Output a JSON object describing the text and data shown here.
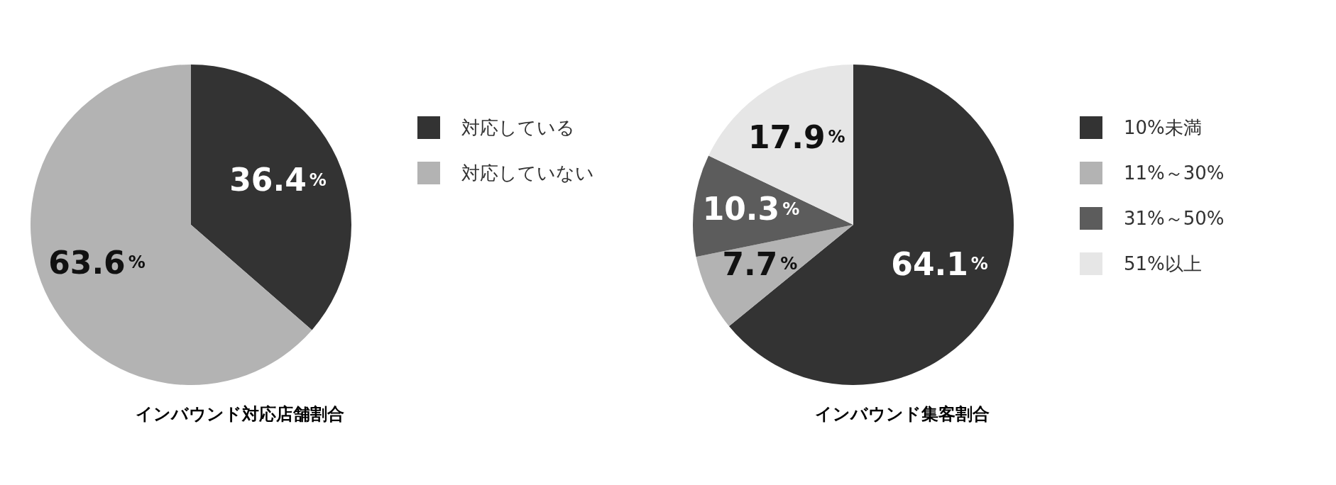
{
  "chart_data": [
    {
      "type": "pie",
      "title": "インバウンド対応店舗割合",
      "categories": [
        "対応している",
        "対応していない"
      ],
      "values": [
        36.4,
        63.6
      ],
      "colors": [
        "#333333",
        "#b3b3b3"
      ],
      "value_labels": [
        "36.4%",
        "63.6%"
      ],
      "legend": "right"
    },
    {
      "type": "pie",
      "title": "インバウンド集客割合",
      "categories": [
        "10%未満",
        "11%～30%",
        "31%～50%",
        "51%以上"
      ],
      "values": [
        64.1,
        7.7,
        10.3,
        17.9
      ],
      "colors": [
        "#333333",
        "#b3b3b3",
        "#5c5c5c",
        "#e6e6e6"
      ],
      "value_labels": [
        "64.1%",
        "7.7%",
        "10.3%",
        "17.9%"
      ],
      "legend": "right"
    }
  ]
}
